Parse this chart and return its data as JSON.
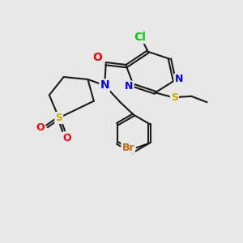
{
  "bg_color": "#e8e8e8",
  "bond_color": "#1a1a1a",
  "atom_colors": {
    "N": "#0000ff",
    "O": "#ff0000",
    "S_thio": "#ccaa00",
    "S_sulfone": "#ccaa00",
    "Cl": "#00cc00",
    "Br": "#cc6600",
    "C": "#1a1a1a"
  },
  "font_size": 9
}
